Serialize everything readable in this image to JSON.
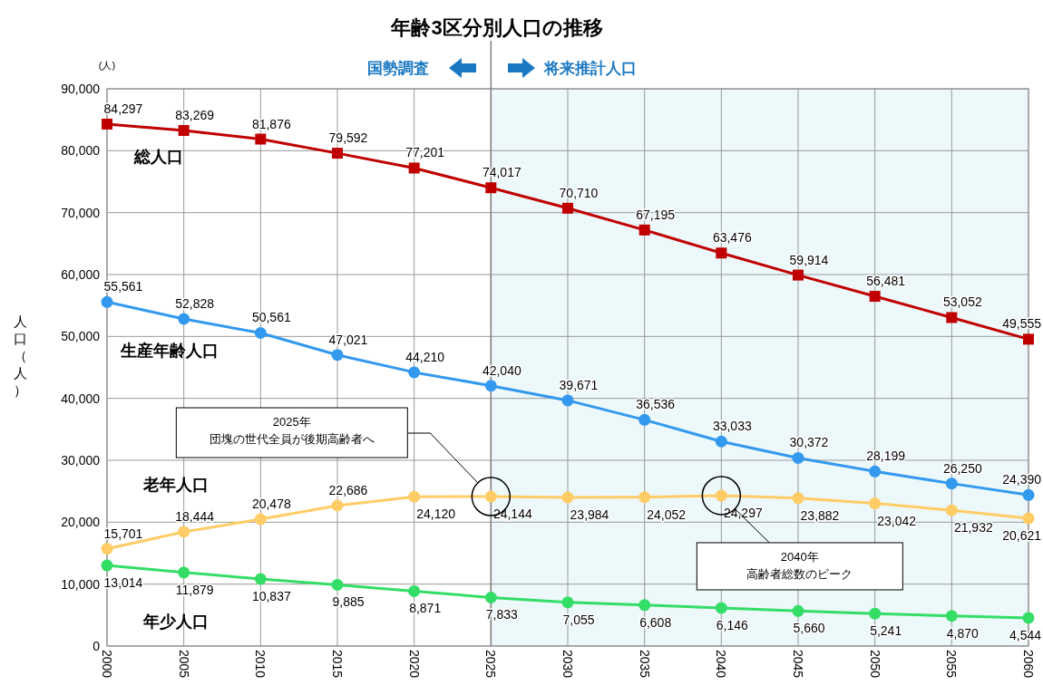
{
  "chart_data": {
    "type": "line",
    "title": "年齢3区分別人口の推移",
    "ylabel": "人口（人）",
    "annotations": [
      "(人)",
      "2025年",
      "団塊の世代全員が後期高齢者へ",
      "2040年",
      "高齢者総数のピーク",
      "国勢調査"
    ],
    "x": [
      2000,
      2005,
      2010,
      2015,
      2020,
      2025,
      2030,
      2035,
      2040,
      2045,
      2050,
      2055,
      2060
    ],
    "xlim": [
      2000,
      2060
    ],
    "xticks": [
      2000,
      2005,
      2010,
      2015,
      2020,
      2025,
      2030,
      2035,
      2040,
      2045,
      2050,
      2055,
      2060
    ],
    "ylim": [
      0,
      90000
    ],
    "yticks": [
      0,
      {
        "value": 10000,
        "label": "10,000"
      },
      {
        "value": 20000,
        "label": "20,000"
      },
      {
        "value": 30000,
        "label": "30,000"
      },
      {
        "value": 40000,
        "label": "40,000"
      },
      {
        "value": 50000,
        "label": "50,000"
      },
      {
        "value": 60000,
        "label": "60,000"
      },
      {
        "value": 70000,
        "label": "70,000"
      },
      {
        "value": 80000,
        "label": "80,000"
      },
      {
        "value": 90000,
        "label": "90,000"
      }
    ],
    "grid": true,
    "legend": false,
    "marker": "circle",
    "bands": [
      {
        "axis": "x",
        "from": 2025,
        "to": 2060,
        "label": "将来推計人口",
        "color": "#edf8fb"
      }
    ],
    "ref_lines": [
      {
        "axis": "x",
        "value": 2025,
        "color": "#808080"
      }
    ],
    "series": [
      {
        "name": "総人口",
        "color": "#c00000",
        "marker": "square",
        "values": [
          84297,
          83269,
          81876,
          79592,
          77201,
          74017,
          70710,
          67195,
          63476,
          59914,
          56481,
          53052,
          49555
        ],
        "value_labels": [
          "84,297",
          "83,269",
          "81,876",
          "79,592",
          "77,201",
          "74,017",
          "70,710",
          "67,195",
          "63,476",
          "59,914",
          "56,481",
          "53,052",
          "49,555"
        ]
      },
      {
        "name": "生産年齢人口",
        "color": "#3399ee",
        "values": [
          55561,
          52828,
          50561,
          47021,
          44210,
          42040,
          39671,
          36536,
          33033,
          30372,
          28199,
          26250,
          24390
        ],
        "value_labels": [
          "55,561",
          "52,828",
          "50,561",
          "47,021",
          "44,210",
          "42,040",
          "39,671",
          "36,536",
          "33,033",
          "30,372",
          "28,199",
          "26,250",
          "24,390"
        ]
      },
      {
        "name": "老年人口",
        "color": "#ffcc66",
        "values": [
          15701,
          18444,
          20478,
          22686,
          24120,
          24144,
          23984,
          24052,
          24297,
          23882,
          23042,
          21932,
          20621
        ],
        "value_labels": [
          "15,701",
          "18,444",
          "20,478",
          "22,686",
          "24,120",
          "24,144",
          "23,984",
          "24,052",
          "24,297",
          "23,882",
          "23,042",
          "21,932",
          "20,621"
        ]
      },
      {
        "name": "年少人口",
        "color": "#33dd66",
        "values": [
          13014,
          11879,
          10837,
          9885,
          8871,
          7833,
          7055,
          6608,
          6146,
          5660,
          5241,
          4870,
          4544
        ],
        "value_labels": [
          "13,014",
          "11,879",
          "10,837",
          "9,885",
          "8,871",
          "7,833",
          "7,055",
          "6,608",
          "6,146",
          "5,660",
          "5,241",
          "4,870",
          "4,544"
        ]
      }
    ]
  }
}
